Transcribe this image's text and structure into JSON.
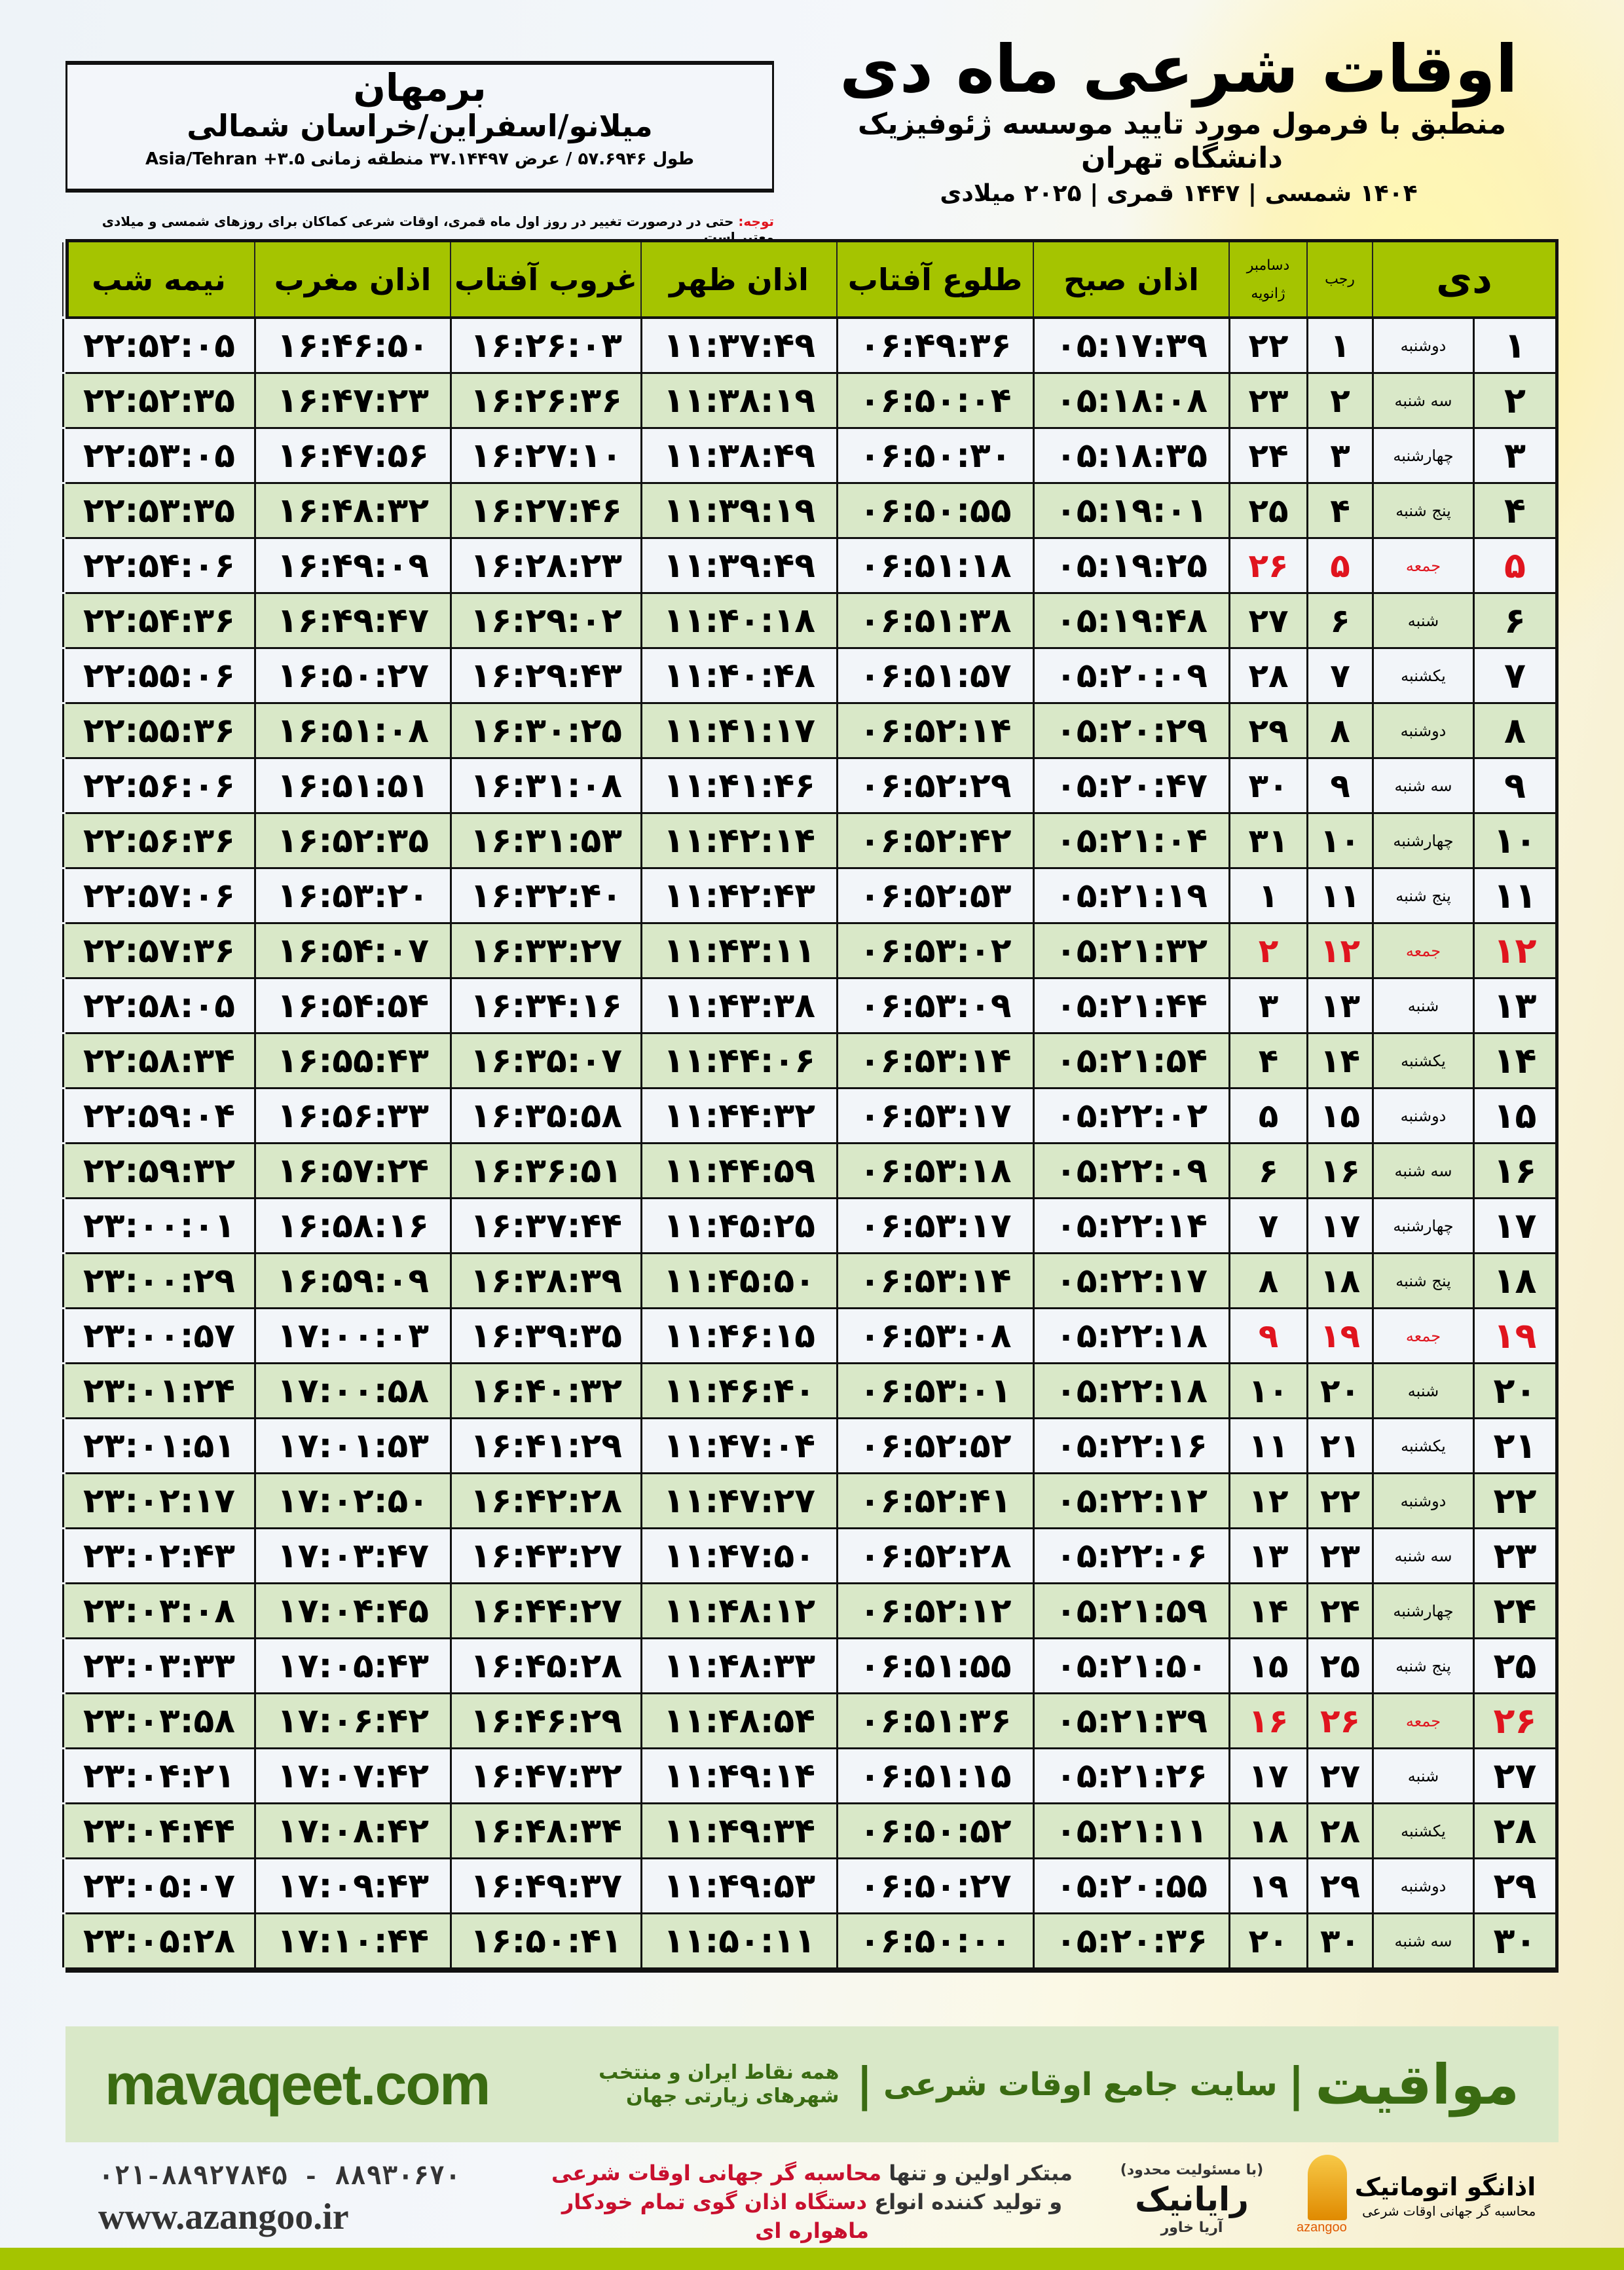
{
  "header": {
    "title": "اوقات شرعی ماه دی",
    "subtitle": "منطبق با فرمول مورد تایید موسسه ژئوفیزیک دانشگاه تهران",
    "date_line": "۱۴۰۴ شمسی | ۱۴۴۷ قمری | ۲۰۲۵ میلادی"
  },
  "location": {
    "city": "برمهان",
    "region": "میلانو/اسفراین/خراسان شمالی",
    "coords": "طول ۵۷.۶۹۴۶ / عرض ۳۷.۱۴۴۹۷ منطقه زمانی ۳.۵+ Asia/Tehran"
  },
  "note": {
    "label": "توجه:",
    "text": " حتی در درصورت تغییر در روز اول ماه قمری، اوقات شرعی کماکان برای روزهای شمسی و میلادی معتبر است."
  },
  "table": {
    "headers": {
      "day": "دی",
      "rajab": "رجب",
      "gregorian_top": "دسامبر",
      "gregorian_bottom": "ژانویه",
      "fajr": "اذان صبح",
      "sunrise": "طلوع آفتاب",
      "dhuhr": "اذان ظهر",
      "sunset": "غروب آفتاب",
      "maghrib": "اذان مغرب",
      "midnight": "نیمه شب"
    },
    "highlight_color": "#e0141e",
    "header_color": "#a5c400",
    "rows": [
      [
        "۱",
        "دوشنبه",
        "۱",
        "۲۲",
        "۰۵:۱۷:۳۹",
        "۰۶:۴۹:۳۶",
        "۱۱:۳۷:۴۹",
        "۱۶:۲۶:۰۳",
        "۱۶:۴۶:۵۰",
        "۲۲:۵۲:۰۵"
      ],
      [
        "۲",
        "سه شنبه",
        "۲",
        "۲۳",
        "۰۵:۱۸:۰۸",
        "۰۶:۵۰:۰۴",
        "۱۱:۳۸:۱۹",
        "۱۶:۲۶:۳۶",
        "۱۶:۴۷:۲۳",
        "۲۲:۵۲:۳۵"
      ],
      [
        "۳",
        "چهارشنبه",
        "۳",
        "۲۴",
        "۰۵:۱۸:۳۵",
        "۰۶:۵۰:۳۰",
        "۱۱:۳۸:۴۹",
        "۱۶:۲۷:۱۰",
        "۱۶:۴۷:۵۶",
        "۲۲:۵۳:۰۵"
      ],
      [
        "۴",
        "پنج شنبه",
        "۴",
        "۲۵",
        "۰۵:۱۹:۰۱",
        "۰۶:۵۰:۵۵",
        "۱۱:۳۹:۱۹",
        "۱۶:۲۷:۴۶",
        "۱۶:۴۸:۳۲",
        "۲۲:۵۳:۳۵"
      ],
      [
        "۵",
        "جمعه",
        "۵",
        "۲۶",
        "۰۵:۱۹:۲۵",
        "۰۶:۵۱:۱۸",
        "۱۱:۳۹:۴۹",
        "۱۶:۲۸:۲۳",
        "۱۶:۴۹:۰۹",
        "۲۲:۵۴:۰۶"
      ],
      [
        "۶",
        "شنبه",
        "۶",
        "۲۷",
        "۰۵:۱۹:۴۸",
        "۰۶:۵۱:۳۸",
        "۱۱:۴۰:۱۸",
        "۱۶:۲۹:۰۲",
        "۱۶:۴۹:۴۷",
        "۲۲:۵۴:۳۶"
      ],
      [
        "۷",
        "یکشنبه",
        "۷",
        "۲۸",
        "۰۵:۲۰:۰۹",
        "۰۶:۵۱:۵۷",
        "۱۱:۴۰:۴۸",
        "۱۶:۲۹:۴۳",
        "۱۶:۵۰:۲۷",
        "۲۲:۵۵:۰۶"
      ],
      [
        "۸",
        "دوشنبه",
        "۸",
        "۲۹",
        "۰۵:۲۰:۲۹",
        "۰۶:۵۲:۱۴",
        "۱۱:۴۱:۱۷",
        "۱۶:۳۰:۲۵",
        "۱۶:۵۱:۰۸",
        "۲۲:۵۵:۳۶"
      ],
      [
        "۹",
        "سه شنبه",
        "۹",
        "۳۰",
        "۰۵:۲۰:۴۷",
        "۰۶:۵۲:۲۹",
        "۱۱:۴۱:۴۶",
        "۱۶:۳۱:۰۸",
        "۱۶:۵۱:۵۱",
        "۲۲:۵۶:۰۶"
      ],
      [
        "۱۰",
        "چهارشنبه",
        "۱۰",
        "۳۱",
        "۰۵:۲۱:۰۴",
        "۰۶:۵۲:۴۲",
        "۱۱:۴۲:۱۴",
        "۱۶:۳۱:۵۳",
        "۱۶:۵۲:۳۵",
        "۲۲:۵۶:۳۶"
      ],
      [
        "۱۱",
        "پنج شنبه",
        "۱۱",
        "۱",
        "۰۵:۲۱:۱۹",
        "۰۶:۵۲:۵۳",
        "۱۱:۴۲:۴۳",
        "۱۶:۳۲:۴۰",
        "۱۶:۵۳:۲۰",
        "۲۲:۵۷:۰۶"
      ],
      [
        "۱۲",
        "جمعه",
        "۱۲",
        "۲",
        "۰۵:۲۱:۳۲",
        "۰۶:۵۳:۰۲",
        "۱۱:۴۳:۱۱",
        "۱۶:۳۳:۲۷",
        "۱۶:۵۴:۰۷",
        "۲۲:۵۷:۳۶"
      ],
      [
        "۱۳",
        "شنبه",
        "۱۳",
        "۳",
        "۰۵:۲۱:۴۴",
        "۰۶:۵۳:۰۹",
        "۱۱:۴۳:۳۸",
        "۱۶:۳۴:۱۶",
        "۱۶:۵۴:۵۴",
        "۲۲:۵۸:۰۵"
      ],
      [
        "۱۴",
        "یکشنبه",
        "۱۴",
        "۴",
        "۰۵:۲۱:۵۴",
        "۰۶:۵۳:۱۴",
        "۱۱:۴۴:۰۶",
        "۱۶:۳۵:۰۷",
        "۱۶:۵۵:۴۳",
        "۲۲:۵۸:۳۴"
      ],
      [
        "۱۵",
        "دوشنبه",
        "۱۵",
        "۵",
        "۰۵:۲۲:۰۲",
        "۰۶:۵۳:۱۷",
        "۱۱:۴۴:۳۲",
        "۱۶:۳۵:۵۸",
        "۱۶:۵۶:۳۳",
        "۲۲:۵۹:۰۴"
      ],
      [
        "۱۶",
        "سه شنبه",
        "۱۶",
        "۶",
        "۰۵:۲۲:۰۹",
        "۰۶:۵۳:۱۸",
        "۱۱:۴۴:۵۹",
        "۱۶:۳۶:۵۱",
        "۱۶:۵۷:۲۴",
        "۲۲:۵۹:۳۲"
      ],
      [
        "۱۷",
        "چهارشنبه",
        "۱۷",
        "۷",
        "۰۵:۲۲:۱۴",
        "۰۶:۵۳:۱۷",
        "۱۱:۴۵:۲۵",
        "۱۶:۳۷:۴۴",
        "۱۶:۵۸:۱۶",
        "۲۳:۰۰:۰۱"
      ],
      [
        "۱۸",
        "پنج شنبه",
        "۱۸",
        "۸",
        "۰۵:۲۲:۱۷",
        "۰۶:۵۳:۱۴",
        "۱۱:۴۵:۵۰",
        "۱۶:۳۸:۳۹",
        "۱۶:۵۹:۰۹",
        "۲۳:۰۰:۲۹"
      ],
      [
        "۱۹",
        "جمعه",
        "۱۹",
        "۹",
        "۰۵:۲۲:۱۸",
        "۰۶:۵۳:۰۸",
        "۱۱:۴۶:۱۵",
        "۱۶:۳۹:۳۵",
        "۱۷:۰۰:۰۳",
        "۲۳:۰۰:۵۷"
      ],
      [
        "۲۰",
        "شنبه",
        "۲۰",
        "۱۰",
        "۰۵:۲۲:۱۸",
        "۰۶:۵۳:۰۱",
        "۱۱:۴۶:۴۰",
        "۱۶:۴۰:۳۲",
        "۱۷:۰۰:۵۸",
        "۲۳:۰۱:۲۴"
      ],
      [
        "۲۱",
        "یکشنبه",
        "۲۱",
        "۱۱",
        "۰۵:۲۲:۱۶",
        "۰۶:۵۲:۵۲",
        "۱۱:۴۷:۰۴",
        "۱۶:۴۱:۲۹",
        "۱۷:۰۱:۵۳",
        "۲۳:۰۱:۵۱"
      ],
      [
        "۲۲",
        "دوشنبه",
        "۲۲",
        "۱۲",
        "۰۵:۲۲:۱۲",
        "۰۶:۵۲:۴۱",
        "۱۱:۴۷:۲۷",
        "۱۶:۴۲:۲۸",
        "۱۷:۰۲:۵۰",
        "۲۳:۰۲:۱۷"
      ],
      [
        "۲۳",
        "سه شنبه",
        "۲۳",
        "۱۳",
        "۰۵:۲۲:۰۶",
        "۰۶:۵۲:۲۸",
        "۱۱:۴۷:۵۰",
        "۱۶:۴۳:۲۷",
        "۱۷:۰۳:۴۷",
        "۲۳:۰۲:۴۳"
      ],
      [
        "۲۴",
        "چهارشنبه",
        "۲۴",
        "۱۴",
        "۰۵:۲۱:۵۹",
        "۰۶:۵۲:۱۲",
        "۱۱:۴۸:۱۲",
        "۱۶:۴۴:۲۷",
        "۱۷:۰۴:۴۵",
        "۲۳:۰۳:۰۸"
      ],
      [
        "۲۵",
        "پنج شنبه",
        "۲۵",
        "۱۵",
        "۰۵:۲۱:۵۰",
        "۰۶:۵۱:۵۵",
        "۱۱:۴۸:۳۳",
        "۱۶:۴۵:۲۸",
        "۱۷:۰۵:۴۳",
        "۲۳:۰۳:۳۳"
      ],
      [
        "۲۶",
        "جمعه",
        "۲۶",
        "۱۶",
        "۰۵:۲۱:۳۹",
        "۰۶:۵۱:۳۶",
        "۱۱:۴۸:۵۴",
        "۱۶:۴۶:۲۹",
        "۱۷:۰۶:۴۲",
        "۲۳:۰۳:۵۸"
      ],
      [
        "۲۷",
        "شنبه",
        "۲۷",
        "۱۷",
        "۰۵:۲۱:۲۶",
        "۰۶:۵۱:۱۵",
        "۱۱:۴۹:۱۴",
        "۱۶:۴۷:۳۲",
        "۱۷:۰۷:۴۲",
        "۲۳:۰۴:۲۱"
      ],
      [
        "۲۸",
        "یکشنبه",
        "۲۸",
        "۱۸",
        "۰۵:۲۱:۱۱",
        "۰۶:۵۰:۵۲",
        "۱۱:۴۹:۳۴",
        "۱۶:۴۸:۳۴",
        "۱۷:۰۸:۴۲",
        "۲۳:۰۴:۴۴"
      ],
      [
        "۲۹",
        "دوشنبه",
        "۲۹",
        "۱۹",
        "۰۵:۲۰:۵۵",
        "۰۶:۵۰:۲۷",
        "۱۱:۴۹:۵۳",
        "۱۶:۴۹:۳۷",
        "۱۷:۰۹:۴۳",
        "۲۳:۰۵:۰۷"
      ],
      [
        "۳۰",
        "سه شنبه",
        "۳۰",
        "۲۰",
        "۰۵:۲۰:۳۶",
        "۰۶:۵۰:۰۰",
        "۱۱:۵۰:۱۱",
        "۱۶:۵۰:۴۱",
        "۱۷:۱۰:۴۴",
        "۲۳:۰۵:۲۸"
      ]
    ]
  },
  "footer": {
    "brand": "مواقیت",
    "tagline": "سایت جامع اوقات شرعی",
    "sub_tagline": "همه نقاط ایران و منتخب شهرهای زیارتی جهان",
    "url": "mavaqeet.com",
    "phones": "۰۲۱-۸۸۹۲۷۸۴۵ - ۸۸۹۳۰۶۷۰",
    "website": "www.azangoo.ir",
    "slogan_1a": "مبتکر اولین و تنها ",
    "slogan_1b": "محاسبه گر جهانی اوقات شرعی",
    "slogan_2a": "و تولید کننده انواع ",
    "slogan_2b": "دستگاه اذان گوی تمام خودکار ماهواره ای",
    "partner_name": "رایانیک",
    "partner_sub": "آریا خاور",
    "partner_note": "(با مسئولیت محدود)",
    "logo_name": "اذانگو اتوماتیک",
    "logo_sub": "محاسبه گر جهانی اوقات شرعی",
    "logo_latin": "azangoo"
  }
}
